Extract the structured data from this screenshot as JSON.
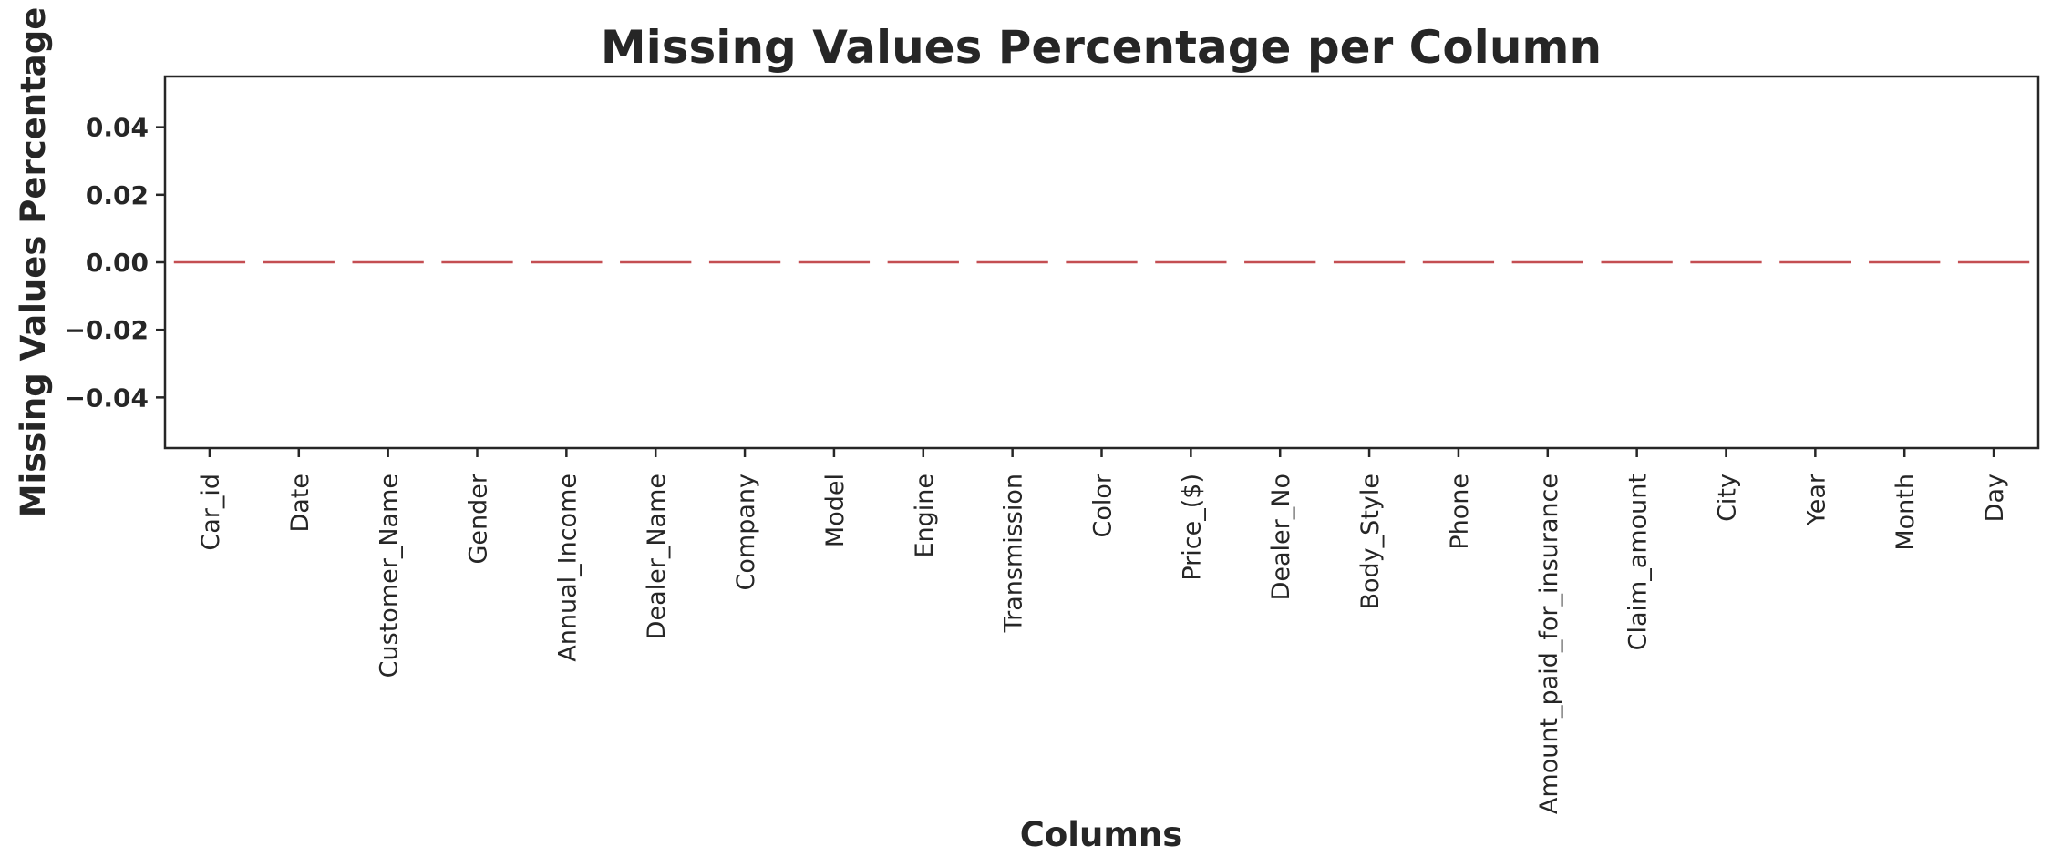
{
  "chart_data": {
    "type": "bar",
    "title": "Missing Values Percentage per Column",
    "xlabel": "Columns",
    "ylabel": "Missing Values Percentage",
    "categories": [
      "Car_id",
      "Date",
      "Customer_Name",
      "Gender",
      "Annual_Income",
      "Dealer_Name",
      "Company",
      "Model",
      "Engine",
      "Transmission",
      "Color",
      "Price_($)",
      "Dealer_No",
      "Body_Style",
      "Phone",
      "Amount_paid_for_insurance",
      "Claim_amount",
      "City",
      "Year",
      "Month",
      "Day"
    ],
    "values": [
      0,
      0,
      0,
      0,
      0,
      0,
      0,
      0,
      0,
      0,
      0,
      0,
      0,
      0,
      0,
      0,
      0,
      0,
      0,
      0,
      0
    ],
    "ylim": [
      -0.055,
      0.055
    ],
    "yticks": [
      "0.04",
      "0.02",
      "0.00",
      "−0.02",
      "−0.04"
    ],
    "ytick_values": [
      0.04,
      0.02,
      0.0,
      -0.02,
      -0.04
    ],
    "bar_color": "#c44e52",
    "grid": false,
    "legend": "none"
  }
}
